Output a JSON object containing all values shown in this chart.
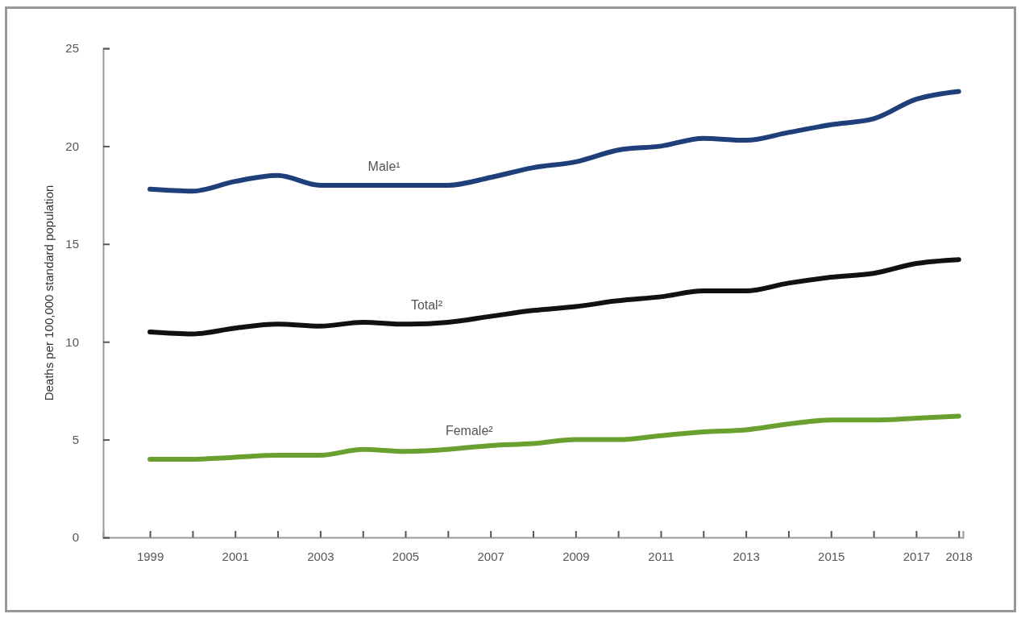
{
  "chart_data": {
    "type": "line",
    "ylabel": "Deaths per 100,000 standard population",
    "x": [
      1999,
      2000,
      2001,
      2002,
      2003,
      2004,
      2005,
      2006,
      2007,
      2008,
      2009,
      2010,
      2011,
      2012,
      2013,
      2014,
      2015,
      2016,
      2017,
      2018
    ],
    "xlim": [
      1997.9,
      2018.1
    ],
    "xticks": [
      1999,
      {
        "value": 2000,
        "label": null
      },
      2001,
      {
        "value": 2002,
        "label": null
      },
      2003,
      {
        "value": 2004,
        "label": null
      },
      2005,
      {
        "value": 2006,
        "label": null
      },
      2007,
      {
        "value": 2008,
        "label": null
      },
      2009,
      {
        "value": 2010,
        "label": null
      },
      2011,
      {
        "value": 2012,
        "label": null
      },
      2013,
      {
        "value": 2014,
        "label": null
      },
      2015,
      {
        "value": 2016,
        "label": null
      },
      2017,
      2018
    ],
    "ylim": [
      0,
      25
    ],
    "yticks": [
      0,
      5,
      10,
      15,
      20,
      25
    ],
    "grid": false,
    "legend": false,
    "marker": "none",
    "line_style": "solid",
    "series": [
      {
        "name": "Male¹",
        "color": "#1f3f7a",
        "values": [
          17.8,
          17.7,
          18.2,
          18.5,
          18.0,
          18.0,
          18.0,
          18.0,
          18.4,
          18.9,
          19.2,
          19.8,
          20.0,
          20.4,
          20.3,
          20.7,
          21.1,
          21.4,
          22.4,
          22.8
        ]
      },
      {
        "name": "Total²",
        "color": "#111111",
        "values": [
          10.5,
          10.4,
          10.7,
          10.9,
          10.8,
          11.0,
          10.9,
          11.0,
          11.3,
          11.6,
          11.8,
          12.1,
          12.3,
          12.6,
          12.6,
          13.0,
          13.3,
          13.5,
          14.0,
          14.2
        ]
      },
      {
        "name": "Female²",
        "color": "#6aa030",
        "values": [
          4.0,
          4.0,
          4.1,
          4.2,
          4.2,
          4.5,
          4.4,
          4.5,
          4.7,
          4.8,
          5.0,
          5.0,
          5.2,
          5.4,
          5.5,
          5.8,
          6.0,
          6.0,
          6.1,
          6.2
        ]
      }
    ]
  }
}
